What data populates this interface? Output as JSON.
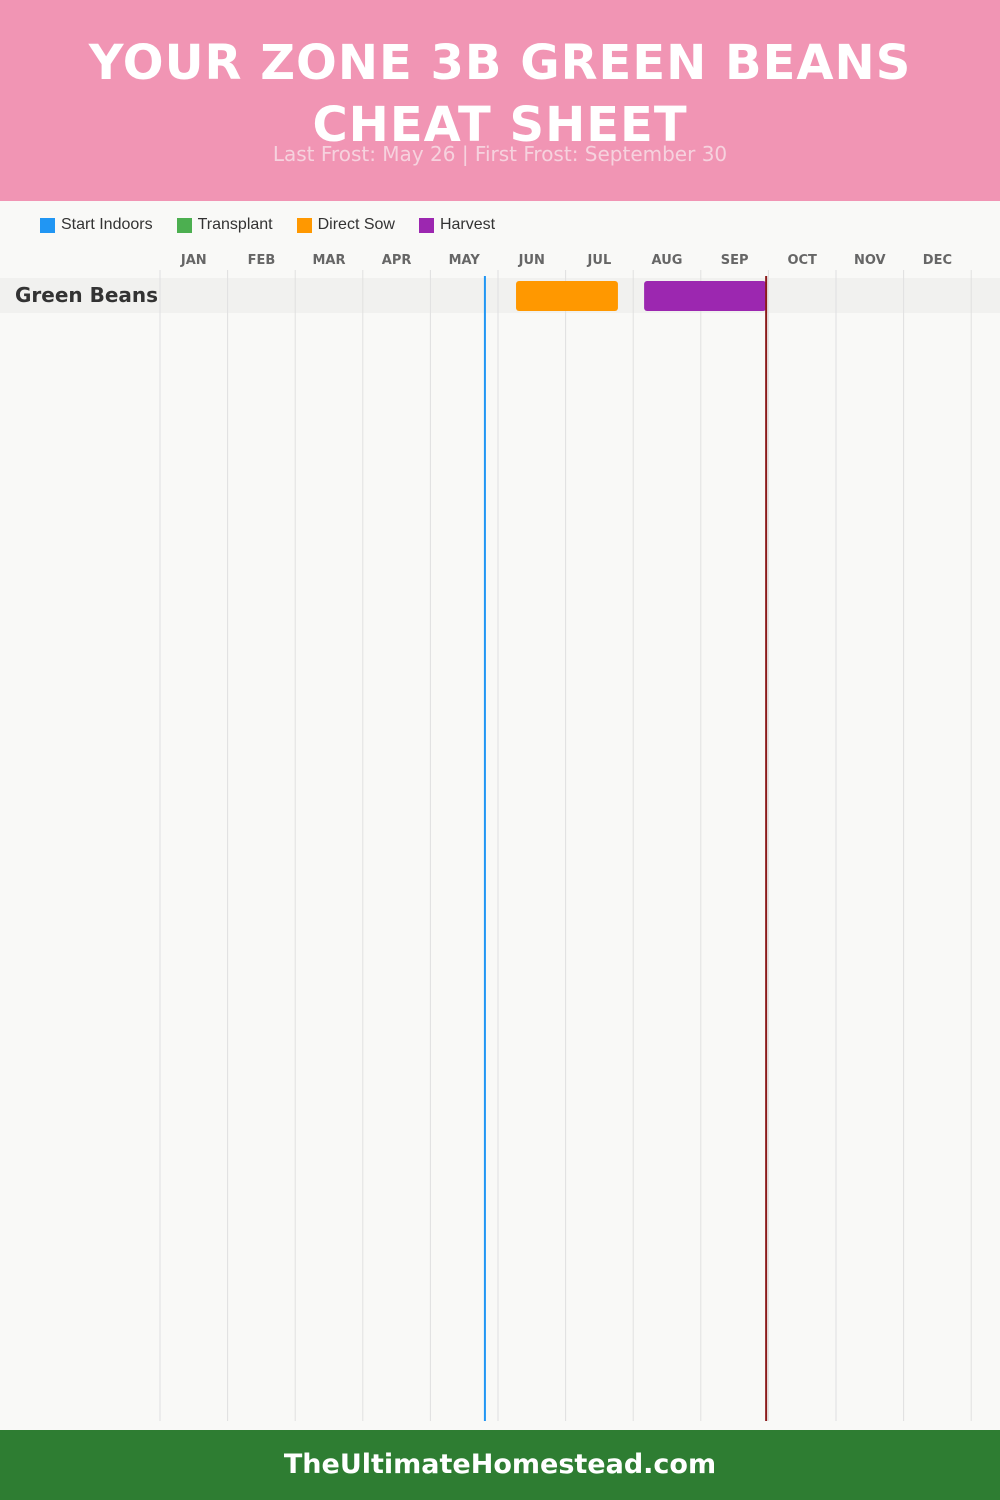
{
  "header": {
    "title": "YOUR ZONE 3B GREEN BEANS CHEAT SHEET",
    "subtitle": "Last Frost: May 26 | First Frost: September 30"
  },
  "legend": [
    {
      "label": "Start Indoors",
      "color": "#2196f3"
    },
    {
      "label": "Transplant",
      "color": "#4caf50"
    },
    {
      "label": "Direct Sow",
      "color": "#ff9800"
    },
    {
      "label": "Harvest",
      "color": "#9c27b0"
    }
  ],
  "chart_data": {
    "type": "gantt",
    "months": [
      "JAN",
      "FEB",
      "MAR",
      "APR",
      "MAY",
      "JUN",
      "JUL",
      "AUG",
      "SEP",
      "OCT",
      "NOV",
      "DEC"
    ],
    "rows": [
      {
        "label": "Green Beans",
        "tasks": [
          {
            "name": "Direct Sow",
            "start": "Jun 9",
            "end": "Jul 25",
            "color": "#ff9800"
          },
          {
            "name": "Harvest",
            "start": "Aug 6",
            "end": "Sep 30",
            "color": "#9c27b0"
          }
        ]
      }
    ],
    "markers": [
      {
        "name": "Last Frost",
        "date": "May 26",
        "color": "#2196f3"
      },
      {
        "name": "First Frost",
        "date": "Sep 30",
        "color": "#8b1a1a"
      }
    ],
    "grid": true
  },
  "footer": {
    "site": "TheUltimateHomestead.com"
  }
}
